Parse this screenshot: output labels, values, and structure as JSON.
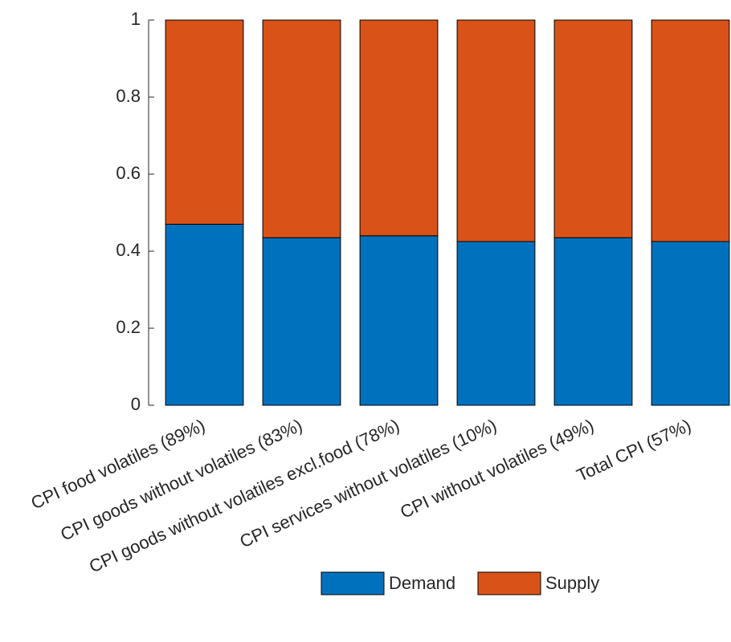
{
  "chart_data": {
    "type": "stacked-bar",
    "categories": [
      "CPI food volatiles (89%)",
      "CPI goods without volatiles (83%)",
      "CPI goods without volatiles excl.food (78%)",
      "CPI services without volatiles (10%)",
      "CPI without volatiles (49%)",
      "Total CPI (57%)"
    ],
    "series": [
      {
        "name": "Demand",
        "color": "#0072bd",
        "values": [
          0.47,
          0.435,
          0.44,
          0.425,
          0.435,
          0.425
        ]
      },
      {
        "name": "Supply",
        "color": "#d95319",
        "values": [
          0.53,
          0.565,
          0.56,
          0.575,
          0.565,
          0.575
        ]
      }
    ],
    "ylim": [
      0,
      1
    ],
    "yticks": [
      0,
      0.2,
      0.4,
      0.6,
      0.8,
      1
    ]
  }
}
